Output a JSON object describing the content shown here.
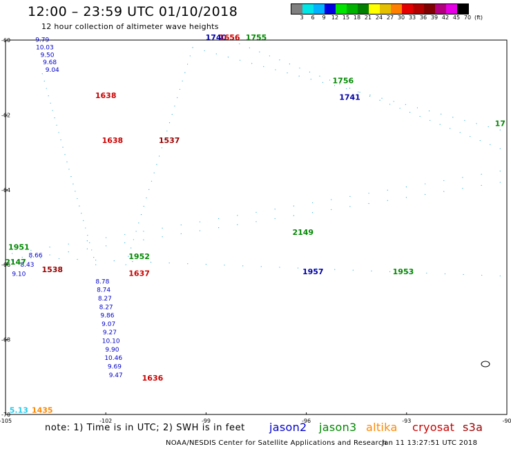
{
  "header": {
    "title": "12:00 – 23:59 UTC 01/10/2018",
    "subtitle": "12 hour collection of altimeter wave heights"
  },
  "colorbar": {
    "unit_label": "(ft)",
    "colors": [
      "#7f7f7f",
      "#00e5e5",
      "#00b2ff",
      "#0000e5",
      "#00e500",
      "#00b200",
      "#007f00",
      "#ffff00",
      "#e5c000",
      "#ff7f00",
      "#e50000",
      "#b20000",
      "#7f0000",
      "#b2007f",
      "#e500e5",
      "#000000"
    ],
    "labels": [
      "3",
      "6",
      "9",
      "12",
      "15",
      "18",
      "21",
      "24",
      "27",
      "30",
      "33",
      "36",
      "39",
      "42",
      "45",
      "70"
    ]
  },
  "axes": {
    "y_labels": [
      "-60",
      "-62",
      "-64",
      "-66",
      "-68",
      "-70"
    ],
    "x_labels": [
      "-105",
      "-102",
      "-99",
      "-96",
      "-93",
      "-90"
    ]
  },
  "map_data": {
    "lat_range": [
      -70,
      -60
    ],
    "lon_range": [
      -105,
      -90
    ],
    "tracks": [
      {
        "satellite": "jason2",
        "color": "#0000cc",
        "values": [
          "9.79",
          "10.03",
          "9.50",
          "9.68",
          "9.04"
        ],
        "lon_start": -103.9,
        "lon_end": -103.6,
        "lat_start": -60.05,
        "lat_end": -60.85
      },
      {
        "satellite": "jason2",
        "color": "#0000cc",
        "values": [
          "8.78",
          "8.74",
          "8.27",
          "8.27",
          "9.86",
          "9.07",
          "9.27",
          "10.10",
          "9.90",
          "10.46",
          "9.69",
          "9.47"
        ],
        "lon_start": -102.1,
        "lon_end": -101.7,
        "lat_start": -66.5,
        "lat_end": -69.0
      },
      {
        "satellite": "jason2",
        "color": "#0000cc",
        "values": [
          "9.10",
          "8.43",
          "8.66"
        ],
        "lon_start": -104.6,
        "lon_end": -104.1,
        "lat_start": -66.3,
        "lat_end": -65.8
      }
    ],
    "time_labels": [
      {
        "text": "1638",
        "color": "#cc0000",
        "lon": -102.0,
        "lat": -61.55
      },
      {
        "text": "1638",
        "color": "#cc0000",
        "lon": -101.8,
        "lat": -62.75
      },
      {
        "text": "1537",
        "color": "#990000",
        "lon": -100.1,
        "lat": -62.75
      },
      {
        "text": "1538",
        "color": "#990000",
        "lon": -103.6,
        "lat": -66.2
      },
      {
        "text": "1637",
        "color": "#cc0000",
        "lon": -101.0,
        "lat": -66.3
      },
      {
        "text": "1636",
        "color": "#cc0000",
        "lon": -100.6,
        "lat": -69.1
      },
      {
        "text": "1435",
        "color": "#ff8800",
        "lon": -103.9,
        "lat": -69.95
      },
      {
        "text": "1755",
        "color": "#008800",
        "lon": -97.5,
        "lat": -60.0
      },
      {
        "text": "1756",
        "color": "#008800",
        "lon": -94.9,
        "lat": -61.15
      },
      {
        "text": "1741",
        "color": "#0000aa",
        "lon": -94.7,
        "lat": -61.6
      },
      {
        "text": "1951",
        "color": "#008800",
        "lon": -104.6,
        "lat": -65.6
      },
      {
        "text": "1952",
        "color": "#008800",
        "lon": -101.0,
        "lat": -65.85
      },
      {
        "text": "1953",
        "color": "#008800",
        "lon": -93.1,
        "lat": -66.25
      },
      {
        "text": "1957",
        "color": "#0000aa",
        "lon": -95.8,
        "lat": -66.25
      },
      {
        "text": "2149",
        "color": "#008800",
        "lon": -96.1,
        "lat": -65.2
      },
      {
        "text": "2147",
        "color": "#008800",
        "lon": -104.7,
        "lat": -66.0
      },
      {
        "text": "1740",
        "color": "#0000aa",
        "lon": -98.7,
        "lat": -60.0
      },
      {
        "text": "1656",
        "color": "#cc0000",
        "lon": -98.3,
        "lat": -60.0
      },
      {
        "text": "17",
        "color": "#008800",
        "lon": -90.2,
        "lat": -62.3
      },
      {
        "text": "5.13",
        "color": "#22ccee",
        "lon": -104.6,
        "lat": -69.95
      }
    ]
  },
  "footer": {
    "note": "note:  1) Time is in UTC; 2) SWH is in feet",
    "satellites": [
      {
        "name": "jason2",
        "color": "#0000cc"
      },
      {
        "name": "jason3",
        "color": "#008800"
      },
      {
        "name": "altika",
        "color": "#ff8800"
      },
      {
        "name": "cryosat",
        "color": "#cc0000"
      },
      {
        "name": "s3a",
        "color": "#990000"
      }
    ],
    "credit": "NOAA/NESDIS Center for Satellite Applications and Research",
    "generated": "Jan 11 13:27:51 UTC 2018"
  }
}
